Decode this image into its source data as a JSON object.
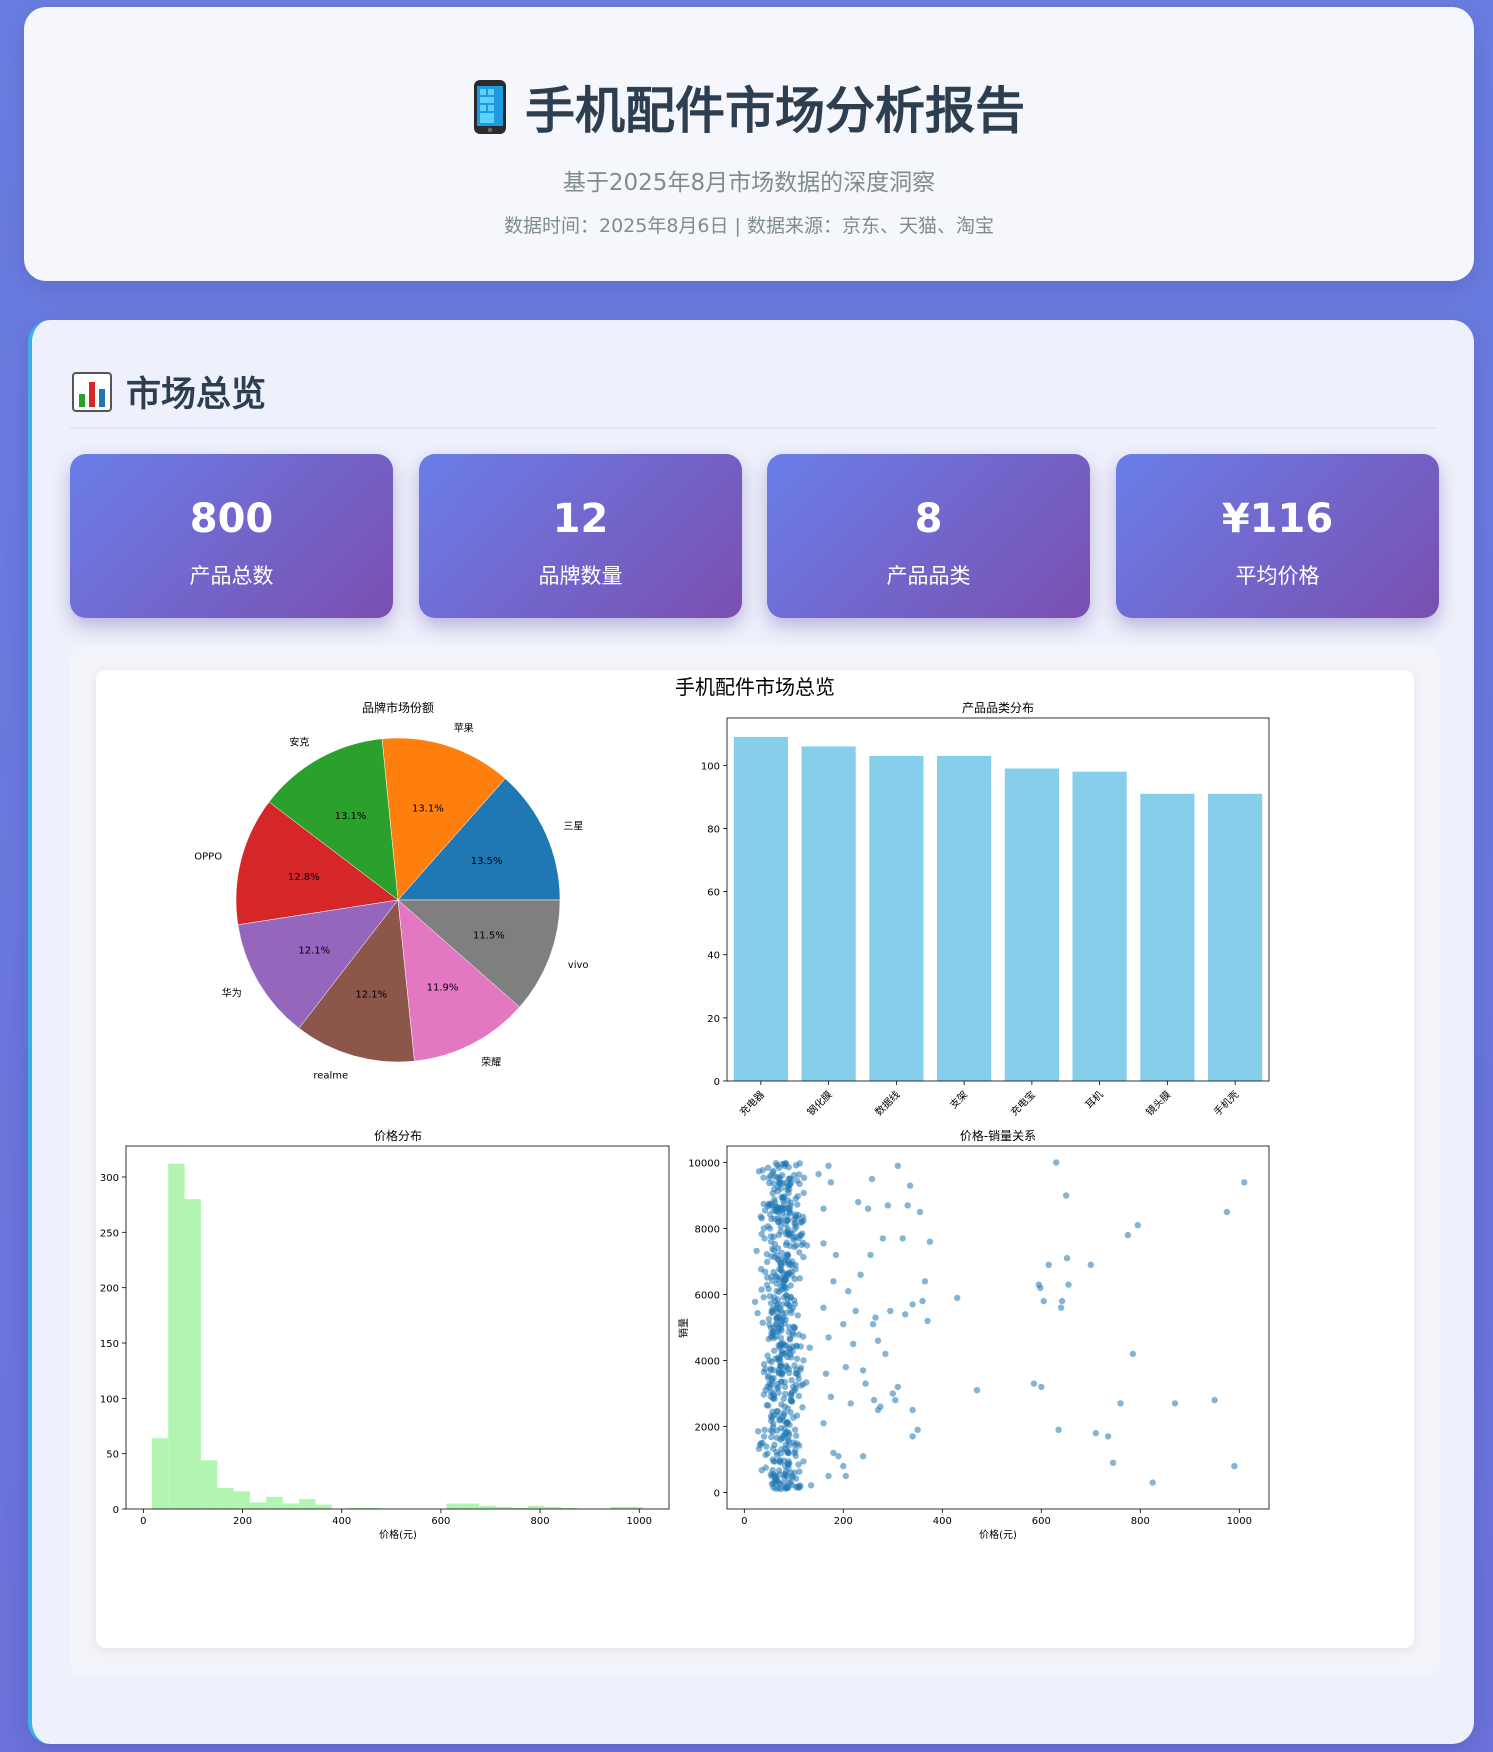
{
  "header": {
    "icon": "mobile-phone-icon",
    "title": "手机配件市场分析报告",
    "subtitle": "基于2025年8月市场数据的深度洞察",
    "meta": "数据时间：2025年8月6日 | 数据来源：京东、天猫、淘宝"
  },
  "overview": {
    "icon": "bar-chart-icon",
    "title": "市场总览",
    "stats": [
      {
        "value": "800",
        "label": "产品总数"
      },
      {
        "value": "12",
        "label": "品牌数量"
      },
      {
        "value": "8",
        "label": "产品品类"
      },
      {
        "value": "¥116",
        "label": "平均价格"
      }
    ]
  },
  "colors": {
    "accent_gradient_start": "#6a7ee8",
    "accent_gradient_end": "#7a4fb0",
    "section_border": "#3bb0e8",
    "bar": "#87ceeb",
    "hist": "#b2f5b2",
    "scatter": "#1f77b4"
  },
  "chart_data": [
    {
      "suptitle": "手机配件市场总览",
      "type": "pie",
      "title": "品牌市场份额",
      "labels": [
        "三星",
        "苹果",
        "安克",
        "OPPO",
        "华为",
        "realme",
        "荣耀",
        "vivo"
      ],
      "values": [
        13.5,
        13.1,
        13.1,
        12.8,
        12.1,
        12.1,
        11.9,
        11.5
      ],
      "value_labels": [
        "13.5%",
        "13.1%",
        "13.1%",
        "12.8%",
        "12.1%",
        "12.1%",
        "11.9%",
        "11.5%"
      ],
      "colors": [
        "#1f77b4",
        "#ff7f0e",
        "#2ca02c",
        "#d62728",
        "#9467bd",
        "#8c564b",
        "#e377c2",
        "#7f7f7f"
      ]
    },
    {
      "type": "bar",
      "title": "产品品类分布",
      "categories": [
        "充电器",
        "钢化膜",
        "数据线",
        "支架",
        "充电宝",
        "耳机",
        "镜头膜",
        "手机壳"
      ],
      "values": [
        109,
        106,
        103,
        103,
        99,
        98,
        91,
        91
      ],
      "ylim": [
        0,
        115
      ],
      "yticks": [
        "0",
        "20",
        "40",
        "60",
        "80",
        "100"
      ]
    },
    {
      "type": "bar",
      "subtype": "histogram",
      "title": "价格分布",
      "xlabel": "价格(元)",
      "xlim": [
        -35,
        1060
      ],
      "ylim": [
        0,
        328
      ],
      "bin_edges": [
        17,
        50,
        83,
        116,
        149,
        182,
        215,
        248,
        281,
        314,
        347,
        380,
        413,
        446,
        479,
        512,
        545,
        578,
        611,
        644,
        677,
        710,
        743,
        776,
        809,
        842,
        875,
        908,
        941,
        974,
        1007
      ],
      "counts": [
        64,
        312,
        280,
        44,
        19,
        16,
        6,
        11,
        5,
        9,
        4,
        0,
        1,
        1,
        0,
        0,
        0,
        0,
        5,
        5,
        3,
        2,
        1,
        3,
        2,
        1,
        0,
        0,
        2,
        2
      ],
      "xticks": [
        "0",
        "200",
        "400",
        "600",
        "800",
        "1000"
      ],
      "yticks": [
        "0",
        "50",
        "100",
        "150",
        "200",
        "250",
        "300"
      ]
    },
    {
      "type": "scatter",
      "title": "价格-销量关系",
      "xlabel": "价格(元)",
      "ylabel": "销量",
      "xlim": [
        -35,
        1060
      ],
      "ylim": [
        -500,
        10500
      ],
      "xticks": [
        "0",
        "200",
        "400",
        "600",
        "800",
        "1000"
      ],
      "yticks": [
        "0",
        "2000",
        "4000",
        "6000",
        "8000",
        "10000"
      ],
      "cluster": {
        "x_range": [
          15,
          140
        ],
        "y_range": [
          100,
          10000
        ],
        "count": 560,
        "note": "dense cluster of low-price products"
      },
      "points": [
        [
          150,
          9650
        ],
        [
          160,
          7550
        ],
        [
          170,
          9900
        ],
        [
          175,
          9400
        ],
        [
          180,
          6400
        ],
        [
          185,
          7200
        ],
        [
          160,
          5600
        ],
        [
          170,
          4700
        ],
        [
          165,
          3600
        ],
        [
          175,
          2900
        ],
        [
          160,
          2100
        ],
        [
          180,
          1200
        ],
        [
          170,
          500
        ],
        [
          190,
          1100
        ],
        [
          200,
          800
        ],
        [
          205,
          500
        ],
        [
          160,
          8600
        ],
        [
          200,
          5100
        ],
        [
          205,
          3800
        ],
        [
          210,
          6100
        ],
        [
          215,
          2700
        ],
        [
          220,
          4500
        ],
        [
          225,
          5500
        ],
        [
          230,
          8800
        ],
        [
          235,
          6600
        ],
        [
          240,
          3700
        ],
        [
          240,
          1100
        ],
        [
          245,
          3300
        ],
        [
          250,
          8600
        ],
        [
          255,
          7200
        ],
        [
          258,
          9500
        ],
        [
          260,
          5100
        ],
        [
          262,
          2800
        ],
        [
          265,
          5300
        ],
        [
          270,
          4600
        ],
        [
          270,
          2500
        ],
        [
          275,
          2600
        ],
        [
          280,
          7700
        ],
        [
          285,
          4200
        ],
        [
          290,
          8700
        ],
        [
          295,
          5500
        ],
        [
          300,
          3000
        ],
        [
          305,
          2800
        ],
        [
          310,
          3200
        ],
        [
          310,
          9900
        ],
        [
          320,
          7700
        ],
        [
          325,
          5400
        ],
        [
          330,
          8700
        ],
        [
          335,
          9300
        ],
        [
          340,
          5700
        ],
        [
          340,
          2500
        ],
        [
          340,
          1700
        ],
        [
          350,
          1900
        ],
        [
          355,
          8500
        ],
        [
          360,
          5800
        ],
        [
          365,
          6400
        ],
        [
          370,
          5200
        ],
        [
          375,
          7600
        ],
        [
          430,
          5900
        ],
        [
          470,
          3100
        ],
        [
          585,
          3300
        ],
        [
          595,
          6300
        ],
        [
          598,
          6200
        ],
        [
          600,
          3200
        ],
        [
          605,
          5800
        ],
        [
          615,
          6900
        ],
        [
          630,
          10000
        ],
        [
          635,
          1900
        ],
        [
          640,
          5600
        ],
        [
          642,
          5800
        ],
        [
          650,
          9000
        ],
        [
          652,
          7100
        ],
        [
          655,
          6300
        ],
        [
          700,
          6900
        ],
        [
          710,
          1800
        ],
        [
          735,
          1700
        ],
        [
          745,
          900
        ],
        [
          760,
          2700
        ],
        [
          775,
          7800
        ],
        [
          785,
          4200
        ],
        [
          795,
          8100
        ],
        [
          825,
          300
        ],
        [
          870,
          2700
        ],
        [
          950,
          2800
        ],
        [
          975,
          8500
        ],
        [
          990,
          800
        ],
        [
          1010,
          9400
        ]
      ]
    }
  ]
}
